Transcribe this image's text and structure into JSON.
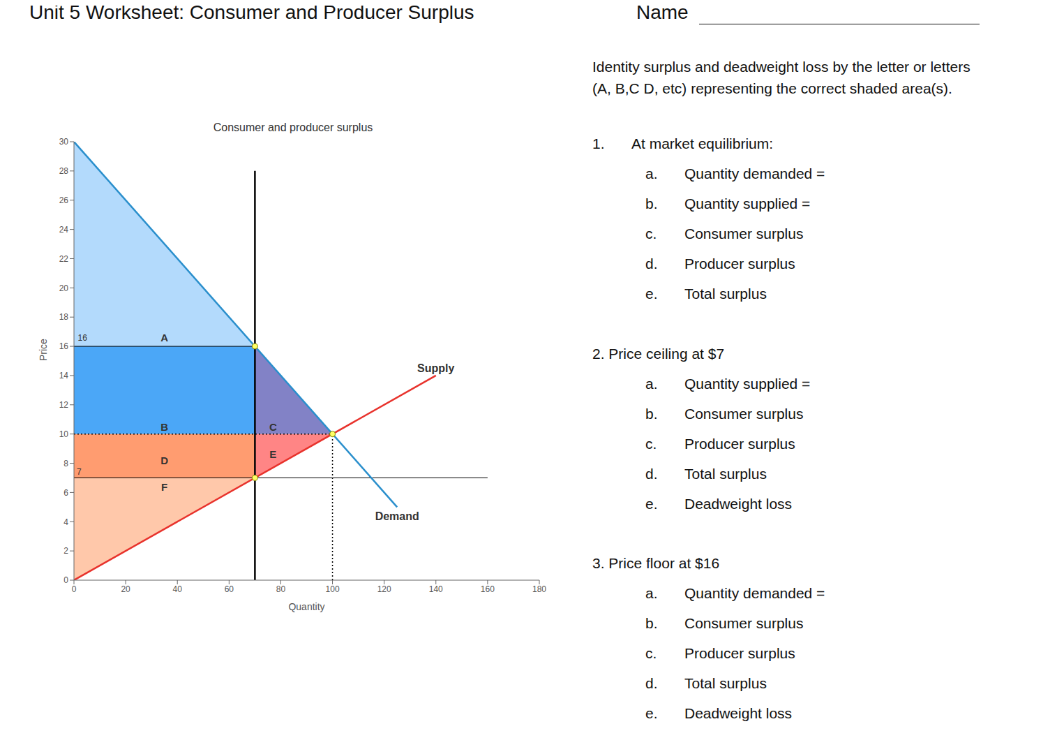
{
  "header": {
    "title": "Unit 5 Worksheet: Consumer and Producer Surplus",
    "name_label": "Name"
  },
  "instructions": "Identity surplus and deadweight loss by the letter or letters (A, B,C D, etc)  representing the correct shaded area(s).",
  "questions": [
    {
      "number": "1.",
      "title": "At market equilibrium:",
      "items": [
        {
          "letter": "a.",
          "text": "Quantity demanded ="
        },
        {
          "letter": "b.",
          "text": "Quantity supplied ="
        },
        {
          "letter": "c.",
          "text": "Consumer surplus"
        },
        {
          "letter": "d.",
          "text": "Producer surplus"
        },
        {
          "letter": "e.",
          "text": "Total surplus"
        }
      ]
    },
    {
      "number": "2.",
      "title": "Price ceiling at $7",
      "items": [
        {
          "letter": "a.",
          "text": "Quantity supplied ="
        },
        {
          "letter": "b.",
          "text": "Consumer surplus"
        },
        {
          "letter": "c.",
          "text": "Producer surplus"
        },
        {
          "letter": "d.",
          "text": "Total surplus"
        },
        {
          "letter": "e.",
          "text": "Deadweight loss"
        }
      ]
    },
    {
      "number": "3.",
      "title": "Price floor at $16",
      "items": [
        {
          "letter": "a.",
          "text": "Quantity demanded ="
        },
        {
          "letter": "b.",
          "text": "Consumer surplus"
        },
        {
          "letter": "c.",
          "text": "Producer surplus"
        },
        {
          "letter": "d.",
          "text": "Total surplus"
        },
        {
          "letter": "e.",
          "text": "Deadweight loss"
        }
      ]
    }
  ],
  "chart_data": {
    "type": "area",
    "title": "Consumer and producer surplus",
    "x_label": "Quantity",
    "y_label": "Price",
    "xlim": [
      0,
      180
    ],
    "xticks": [
      0,
      20,
      40,
      60,
      80,
      100,
      120,
      140,
      160,
      180
    ],
    "ylim": [
      0,
      30
    ],
    "yticks": [
      0,
      2,
      4,
      6,
      8,
      10,
      12,
      14,
      16,
      18,
      20,
      22,
      24,
      26,
      28,
      30
    ],
    "series": [
      {
        "name": "Demand",
        "color": "#2a8fcc",
        "type": "line",
        "x": [
          0,
          125
        ],
        "values": [
          30,
          5
        ],
        "label_at": [
          125,
          4.35
        ]
      },
      {
        "name": "Supply",
        "color": "#e8322c",
        "type": "line",
        "x": [
          0,
          140
        ],
        "values": [
          0,
          14
        ],
        "label_at": [
          140,
          14.5
        ]
      }
    ],
    "regions": [
      {
        "name": "A",
        "color": "#b3dafc",
        "x": [
          0,
          70
        ],
        "lower": [
          16,
          16
        ],
        "upper": [
          30,
          16
        ],
        "label_at": [
          35,
          16.6
        ]
      },
      {
        "name": "B",
        "color": "#4ba7f7",
        "x": [
          0,
          70
        ],
        "lower": [
          10,
          10
        ],
        "upper": [
          16,
          16
        ],
        "label_at": [
          35,
          10.5
        ]
      },
      {
        "name": "C",
        "color": "#8282c6",
        "x": [
          70,
          100
        ],
        "lower": [
          10,
          10
        ],
        "upper": [
          16,
          10
        ],
        "label_at": [
          77,
          10.5
        ]
      },
      {
        "name": "D",
        "color": "#ff9c70",
        "x": [
          0,
          70
        ],
        "lower": [
          7,
          7
        ],
        "upper": [
          10,
          10
        ],
        "label_at": [
          35,
          8.2
        ]
      },
      {
        "name": "E",
        "color": "#ff8585",
        "x": [
          70,
          100
        ],
        "lower": [
          7,
          10
        ],
        "upper": [
          10,
          10
        ],
        "label_at": [
          77,
          8.6
        ]
      },
      {
        "name": "F",
        "color": "#ffc8aa",
        "x": [
          0,
          70
        ],
        "lower": [
          0,
          7
        ],
        "upper": [
          7,
          7
        ],
        "label_at": [
          35,
          6.4
        ]
      }
    ],
    "lines": [
      {
        "x": [
          70,
          70
        ],
        "y": [
          0,
          28
        ],
        "line_style": "thick",
        "color": "#000000"
      },
      {
        "x": [
          0,
          160
        ],
        "y": [
          7,
          7
        ],
        "line_style": "solid",
        "color": "#000000"
      },
      {
        "x": [
          0,
          70
        ],
        "y": [
          16,
          16
        ],
        "line_style": "solid",
        "color": "#000000"
      },
      {
        "x": [
          0,
          100
        ],
        "y": [
          10,
          10
        ],
        "line_style": "dotted",
        "color": "#000000"
      },
      {
        "x": [
          100,
          100
        ],
        "y": [
          0,
          10
        ],
        "line_style": "dotted",
        "color": "#000000"
      }
    ],
    "points": {
      "x": [
        70,
        70,
        100
      ],
      "y": [
        16,
        7,
        10
      ],
      "color": "#ffff66"
    },
    "annotations": [
      {
        "text": "16",
        "x": 3.3,
        "y": 16.6
      },
      {
        "text": "7",
        "x": 2,
        "y": 7.4
      }
    ]
  }
}
